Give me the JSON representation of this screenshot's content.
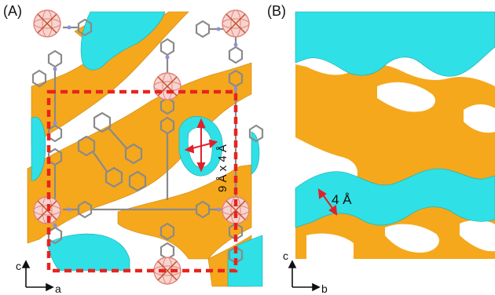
{
  "panel_a": {
    "label": "(A)",
    "pore_dimension": "9 Å x 4 Å",
    "axis_vertical": "c",
    "axis_horizontal": "a"
  },
  "panel_b": {
    "label": "(B)",
    "pore_dimension": "4 Å",
    "axis_vertical": "c",
    "axis_horizontal": "b"
  },
  "colors": {
    "channel_orange": "#f5a81c",
    "channel_cyan": "#2fe0e6",
    "unit_cell": "#e8231e",
    "measure_arrow": "#e0202a",
    "framework": "#8a8a8a",
    "metal_node": "#e8a8a0",
    "nitrogen": "#8f8fd8"
  }
}
